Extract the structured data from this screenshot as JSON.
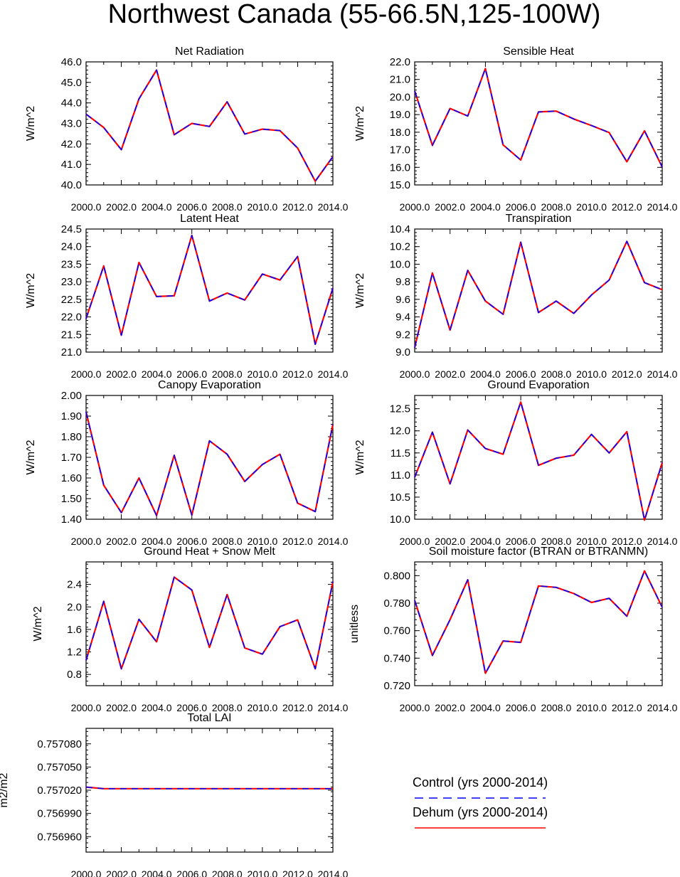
{
  "page_title": "Northwest Canada (55-66.5N,125-100W)",
  "legend": {
    "items": [
      {
        "label": "Control (yrs 2000-2014)",
        "color": "#0000ff",
        "dash": true
      },
      {
        "label": "Dehum (yrs 2000-2014)",
        "color": "#ff0000",
        "dash": false
      }
    ]
  },
  "chart_data": [
    {
      "type": "line",
      "title": "Net Radiation",
      "ylabel": "W/m^2",
      "x": [
        2000,
        2001,
        2002,
        2003,
        2004,
        2005,
        2006,
        2007,
        2008,
        2009,
        2010,
        2011,
        2012,
        2013,
        2014
      ],
      "ylim": [
        40.0,
        46.0
      ],
      "yticks": [
        "40.0",
        "41.0",
        "42.0",
        "43.0",
        "44.0",
        "45.0",
        "46.0"
      ],
      "xticks": [
        "2000.0",
        "2002.0",
        "2004.0",
        "2006.0",
        "2008.0",
        "2010.0",
        "2012.0",
        "2014.0"
      ],
      "series": [
        {
          "name": "Control (yrs 2000-2014)",
          "values": [
            43.45,
            42.8,
            41.72,
            44.2,
            45.6,
            42.45,
            43.0,
            42.85,
            44.05,
            42.48,
            42.72,
            42.65,
            41.8,
            40.18,
            41.38
          ]
        },
        {
          "name": "Dehum (yrs 2000-2014)",
          "values": [
            43.45,
            42.8,
            41.72,
            44.2,
            45.6,
            42.45,
            43.0,
            42.85,
            44.05,
            42.48,
            42.72,
            42.65,
            41.8,
            40.18,
            41.38
          ]
        }
      ]
    },
    {
      "type": "line",
      "title": "Sensible Heat",
      "ylabel": "W/m^2",
      "x": [
        2000,
        2001,
        2002,
        2003,
        2004,
        2005,
        2006,
        2007,
        2008,
        2009,
        2010,
        2011,
        2012,
        2013,
        2014
      ],
      "ylim": [
        15.0,
        22.0
      ],
      "yticks": [
        "15.0",
        "16.0",
        "17.0",
        "18.0",
        "19.0",
        "20.0",
        "21.0",
        "22.0"
      ],
      "xticks": [
        "2000.0",
        "2002.0",
        "2004.0",
        "2006.0",
        "2008.0",
        "2010.0",
        "2012.0",
        "2014.0"
      ],
      "series": [
        {
          "name": "Control (yrs 2000-2014)",
          "values": [
            20.35,
            17.25,
            19.35,
            18.92,
            21.62,
            17.28,
            16.42,
            19.15,
            19.2,
            18.75,
            18.38,
            17.98,
            16.32,
            18.08,
            16.02
          ]
        },
        {
          "name": "Dehum (yrs 2000-2014)",
          "values": [
            20.35,
            17.25,
            19.35,
            18.92,
            21.62,
            17.28,
            16.42,
            19.15,
            19.2,
            18.75,
            18.38,
            17.98,
            16.32,
            18.08,
            16.02
          ]
        }
      ]
    },
    {
      "type": "line",
      "title": "Latent Heat",
      "ylabel": "W/m^2",
      "x": [
        2000,
        2001,
        2002,
        2003,
        2004,
        2005,
        2006,
        2007,
        2008,
        2009,
        2010,
        2011,
        2012,
        2013,
        2014
      ],
      "ylim": [
        21.0,
        24.5
      ],
      "yticks": [
        "21.0",
        "21.5",
        "22.0",
        "22.5",
        "23.0",
        "23.5",
        "24.0",
        "24.5"
      ],
      "xticks": [
        "2000.0",
        "2002.0",
        "2004.0",
        "2006.0",
        "2008.0",
        "2010.0",
        "2012.0",
        "2014.0"
      ],
      "series": [
        {
          "name": "Control (yrs 2000-2014)",
          "values": [
            21.95,
            23.45,
            21.48,
            23.55,
            22.58,
            22.6,
            24.32,
            22.45,
            22.68,
            22.48,
            23.22,
            23.05,
            23.72,
            21.22,
            22.82
          ]
        },
        {
          "name": "Dehum (yrs 2000-2014)",
          "values": [
            21.95,
            23.45,
            21.48,
            23.55,
            22.58,
            22.6,
            24.32,
            22.45,
            22.68,
            22.48,
            23.22,
            23.05,
            23.72,
            21.22,
            22.82
          ]
        }
      ]
    },
    {
      "type": "line",
      "title": "Transpiration",
      "ylabel": "W/m^2",
      "x": [
        2000,
        2001,
        2002,
        2003,
        2004,
        2005,
        2006,
        2007,
        2008,
        2009,
        2010,
        2011,
        2012,
        2013,
        2014
      ],
      "ylim": [
        9.0,
        10.4
      ],
      "yticks": [
        "9.0",
        "9.2",
        "9.4",
        "9.6",
        "9.8",
        "10.0",
        "10.2",
        "10.4"
      ],
      "xticks": [
        "2000.0",
        "2002.0",
        "2004.0",
        "2006.0",
        "2008.0",
        "2010.0",
        "2012.0",
        "2014.0"
      ],
      "series": [
        {
          "name": "Control (yrs 2000-2014)",
          "values": [
            9.05,
            9.9,
            9.25,
            9.93,
            9.58,
            9.43,
            10.25,
            9.45,
            9.58,
            9.44,
            9.65,
            9.82,
            10.26,
            9.79,
            9.71
          ]
        },
        {
          "name": "Dehum (yrs 2000-2014)",
          "values": [
            9.05,
            9.9,
            9.25,
            9.93,
            9.58,
            9.43,
            10.25,
            9.45,
            9.58,
            9.44,
            9.65,
            9.82,
            10.26,
            9.79,
            9.71
          ]
        }
      ]
    },
    {
      "type": "line",
      "title": "Canopy Evaporation",
      "ylabel": "W/m^2",
      "x": [
        2000,
        2001,
        2002,
        2003,
        2004,
        2005,
        2006,
        2007,
        2008,
        2009,
        2010,
        2011,
        2012,
        2013,
        2014
      ],
      "ylim": [
        1.4,
        2.0
      ],
      "yticks": [
        "1.40",
        "1.50",
        "1.60",
        "1.70",
        "1.80",
        "1.90",
        "2.00"
      ],
      "xticks": [
        "2000.0",
        "2002.0",
        "2004.0",
        "2006.0",
        "2008.0",
        "2010.0",
        "2012.0",
        "2014.0"
      ],
      "series": [
        {
          "name": "Control (yrs 2000-2014)",
          "values": [
            1.92,
            1.565,
            1.432,
            1.6,
            1.418,
            1.71,
            1.42,
            1.78,
            1.715,
            1.583,
            1.665,
            1.715,
            1.478,
            1.437,
            1.86
          ]
        },
        {
          "name": "Dehum (yrs 2000-2014)",
          "values": [
            1.92,
            1.565,
            1.432,
            1.6,
            1.418,
            1.71,
            1.42,
            1.78,
            1.715,
            1.583,
            1.665,
            1.715,
            1.478,
            1.437,
            1.86
          ]
        }
      ]
    },
    {
      "type": "line",
      "title": "Ground Evaporation",
      "ylabel": "W/m^2",
      "x": [
        2000,
        2001,
        2002,
        2003,
        2004,
        2005,
        2006,
        2007,
        2008,
        2009,
        2010,
        2011,
        2012,
        2013,
        2014
      ],
      "ylim": [
        10.0,
        12.8
      ],
      "yticks": [
        "10.0",
        "10.5",
        "11.0",
        "11.5",
        "12.0",
        "12.5"
      ],
      "xticks": [
        "2000.0",
        "2002.0",
        "2004.0",
        "2006.0",
        "2008.0",
        "2010.0",
        "2012.0",
        "2014.0"
      ],
      "series": [
        {
          "name": "Control (yrs 2000-2014)",
          "values": [
            10.95,
            11.97,
            10.8,
            12.02,
            11.6,
            11.47,
            12.65,
            11.22,
            11.38,
            11.45,
            11.92,
            11.5,
            11.98,
            9.98,
            11.28
          ]
        },
        {
          "name": "Dehum (yrs 2000-2014)",
          "values": [
            10.95,
            11.97,
            10.8,
            12.02,
            11.6,
            11.47,
            12.65,
            11.22,
            11.38,
            11.45,
            11.92,
            11.5,
            11.98,
            9.98,
            11.28
          ]
        }
      ]
    },
    {
      "type": "line",
      "title": "Ground Heat + Snow Melt",
      "ylabel": "W/m^2",
      "x": [
        2000,
        2001,
        2002,
        2003,
        2004,
        2005,
        2006,
        2007,
        2008,
        2009,
        2010,
        2011,
        2012,
        2013,
        2014
      ],
      "ylim": [
        0.6,
        2.8
      ],
      "yticks": [
        "0.8",
        "1.2",
        "1.6",
        "2.0",
        "2.4"
      ],
      "xticks": [
        "2000.0",
        "2002.0",
        "2004.0",
        "2006.0",
        "2008.0",
        "2010.0",
        "2012.0",
        "2014.0"
      ],
      "series": [
        {
          "name": "Control (yrs 2000-2014)",
          "values": [
            1.05,
            2.1,
            0.9,
            1.78,
            1.38,
            2.53,
            2.3,
            1.28,
            2.22,
            1.27,
            1.16,
            1.65,
            1.77,
            0.9,
            2.45
          ]
        },
        {
          "name": "Dehum (yrs 2000-2014)",
          "values": [
            1.05,
            2.1,
            0.9,
            1.78,
            1.38,
            2.53,
            2.3,
            1.28,
            2.22,
            1.27,
            1.16,
            1.65,
            1.77,
            0.9,
            2.45
          ]
        }
      ]
    },
    {
      "type": "line",
      "title": "Soil moisture factor (BTRAN or BTRANMN)",
      "ylabel": "unitless",
      "x": [
        2000,
        2001,
        2002,
        2003,
        2004,
        2005,
        2006,
        2007,
        2008,
        2009,
        2010,
        2011,
        2012,
        2013,
        2014
      ],
      "ylim": [
        0.72,
        0.81
      ],
      "yticks": [
        "0.720",
        "0.740",
        "0.760",
        "0.780",
        "0.800"
      ],
      "xticks": [
        "2000.0",
        "2002.0",
        "2004.0",
        "2006.0",
        "2008.0",
        "2010.0",
        "2012.0",
        "2014.0"
      ],
      "series": [
        {
          "name": "Control (yrs 2000-2014)",
          "values": [
            0.782,
            0.742,
            0.768,
            0.797,
            0.729,
            0.7525,
            0.7515,
            0.7925,
            0.7915,
            0.787,
            0.7805,
            0.7835,
            0.7705,
            0.8035,
            0.777
          ]
        },
        {
          "name": "Dehum (yrs 2000-2014)",
          "values": [
            0.782,
            0.742,
            0.768,
            0.797,
            0.729,
            0.7525,
            0.7515,
            0.7925,
            0.7915,
            0.787,
            0.7805,
            0.7835,
            0.7705,
            0.8035,
            0.777
          ]
        }
      ]
    },
    {
      "type": "line",
      "title": "Total LAI",
      "ylabel": "m2/m2",
      "x": [
        2000,
        2001,
        2002,
        2003,
        2004,
        2005,
        2006,
        2007,
        2008,
        2009,
        2010,
        2011,
        2012,
        2013,
        2014
      ],
      "ylim": [
        0.75694,
        0.7571
      ],
      "yticks": [
        "0.756960",
        "0.756990",
        "0.757020",
        "0.757050",
        "0.757080"
      ],
      "xticks": [
        "2000.0",
        "2002.0",
        "2004.0",
        "2006.0",
        "2008.0",
        "2010.0",
        "2012.0",
        "2014.0"
      ],
      "series": [
        {
          "name": "Control (yrs 2000-2014)",
          "values": [
            0.757024,
            0.757022,
            0.757022,
            0.757022,
            0.757022,
            0.757022,
            0.757022,
            0.757022,
            0.757022,
            0.757022,
            0.757022,
            0.757022,
            0.757022,
            0.757022,
            0.757022
          ]
        },
        {
          "name": "Dehum (yrs 2000-2014)",
          "values": [
            0.757024,
            0.757022,
            0.757022,
            0.757022,
            0.757022,
            0.757022,
            0.757022,
            0.757022,
            0.757022,
            0.757022,
            0.757022,
            0.757022,
            0.757022,
            0.757022,
            0.757022
          ]
        }
      ]
    }
  ]
}
